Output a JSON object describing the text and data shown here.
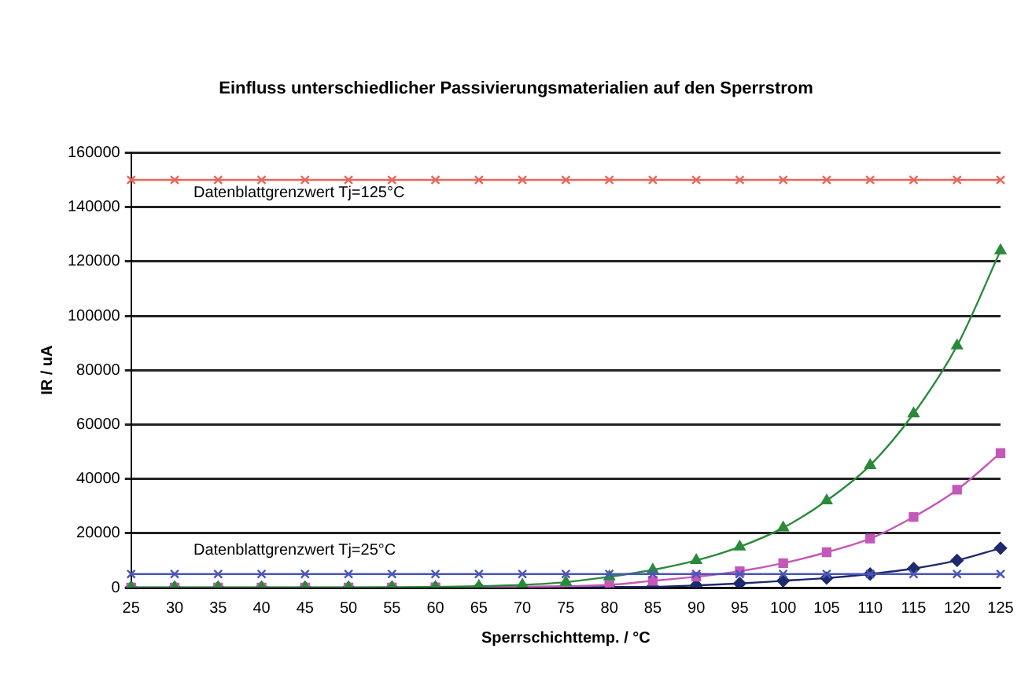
{
  "chart_data": {
    "type": "line",
    "title": "Einfluss unterschiedlicher Passivierungsmaterialien auf den Sperrstrom",
    "xlabel": "Sperrschichttemp. / °C",
    "ylabel": "IR / uA",
    "categories": [
      "25",
      "30",
      "35",
      "40",
      "45",
      "50",
      "55",
      "60",
      "65",
      "70",
      "75",
      "80",
      "85",
      "90",
      "95",
      "100",
      "105",
      "110",
      "115",
      "120",
      "125"
    ],
    "series": [
      {
        "name": "Datenblattgrenzwert Tj=125°C",
        "color": "#e8665a",
        "marker": "cross",
        "values": [
          150000,
          150000,
          150000,
          150000,
          150000,
          150000,
          150000,
          150000,
          150000,
          150000,
          150000,
          150000,
          150000,
          150000,
          150000,
          150000,
          150000,
          150000,
          150000,
          150000,
          150000
        ]
      },
      {
        "name": "Datenblattgrenzwert Tj=25°C",
        "color": "#4a55b8",
        "marker": "cross",
        "values": [
          5000,
          5000,
          5000,
          5000,
          5000,
          5000,
          5000,
          5000,
          5000,
          5000,
          5000,
          5000,
          5000,
          5000,
          5000,
          5000,
          5000,
          5000,
          5000,
          5000,
          5000
        ]
      },
      {
        "color": "#2a8a3a",
        "marker": "triangle",
        "values": [
          0,
          0,
          0,
          0,
          0,
          0,
          100,
          200,
          500,
          1000,
          2000,
          4000,
          6500,
          10000,
          15000,
          22000,
          32000,
          45000,
          64000,
          89000,
          124000
        ]
      },
      {
        "color": "#c458b8",
        "marker": "square",
        "values": [
          0,
          0,
          0,
          0,
          0,
          0,
          0,
          100,
          null,
          null,
          null,
          1000,
          2500,
          4000,
          6000,
          9000,
          13000,
          18000,
          26000,
          36000,
          49500
        ]
      },
      {
        "color": "#1e2a6e",
        "marker": "diamond",
        "values": [
          0,
          0,
          0,
          0,
          0,
          0,
          0,
          0,
          0,
          0,
          100,
          200,
          300,
          800,
          1500,
          2500,
          3500,
          5000,
          7000,
          10000,
          14500
        ]
      }
    ],
    "ylim": [
      0,
      160000
    ],
    "yticks": [
      0,
      20000,
      40000,
      60000,
      80000,
      100000,
      120000,
      140000,
      160000
    ],
    "grid": "y",
    "legend": false,
    "line_style": "solid"
  }
}
